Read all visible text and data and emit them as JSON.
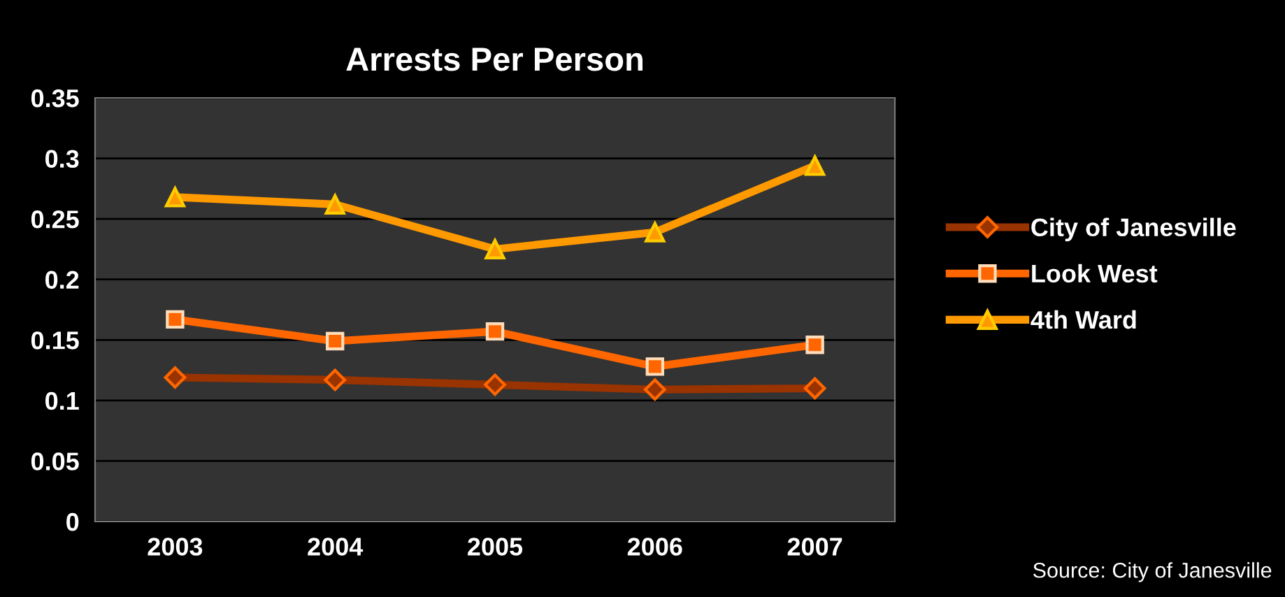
{
  "chart_data": {
    "type": "line",
    "title": "Arrests Per Person",
    "categories": [
      "2003",
      "2004",
      "2005",
      "2006",
      "2007"
    ],
    "series": [
      {
        "name": "City of Janesville",
        "color": "#993300",
        "marker": "diamond",
        "values": [
          0.119,
          0.117,
          0.113,
          0.109,
          0.11
        ]
      },
      {
        "name": "Look West",
        "color": "#ff6600",
        "marker": "square",
        "values": [
          0.167,
          0.149,
          0.157,
          0.128,
          0.146
        ]
      },
      {
        "name": "4th Ward",
        "color": "#ff9900",
        "marker": "triangle",
        "values": [
          0.268,
          0.262,
          0.225,
          0.239,
          0.294
        ]
      }
    ],
    "ylim": [
      0,
      0.35
    ],
    "yticks": [
      0,
      0.05,
      0.1,
      0.15,
      0.2,
      0.25,
      0.3,
      0.35
    ],
    "grid": "y",
    "legend": "right",
    "annotations": [
      "Source: City of Janesville"
    ]
  }
}
